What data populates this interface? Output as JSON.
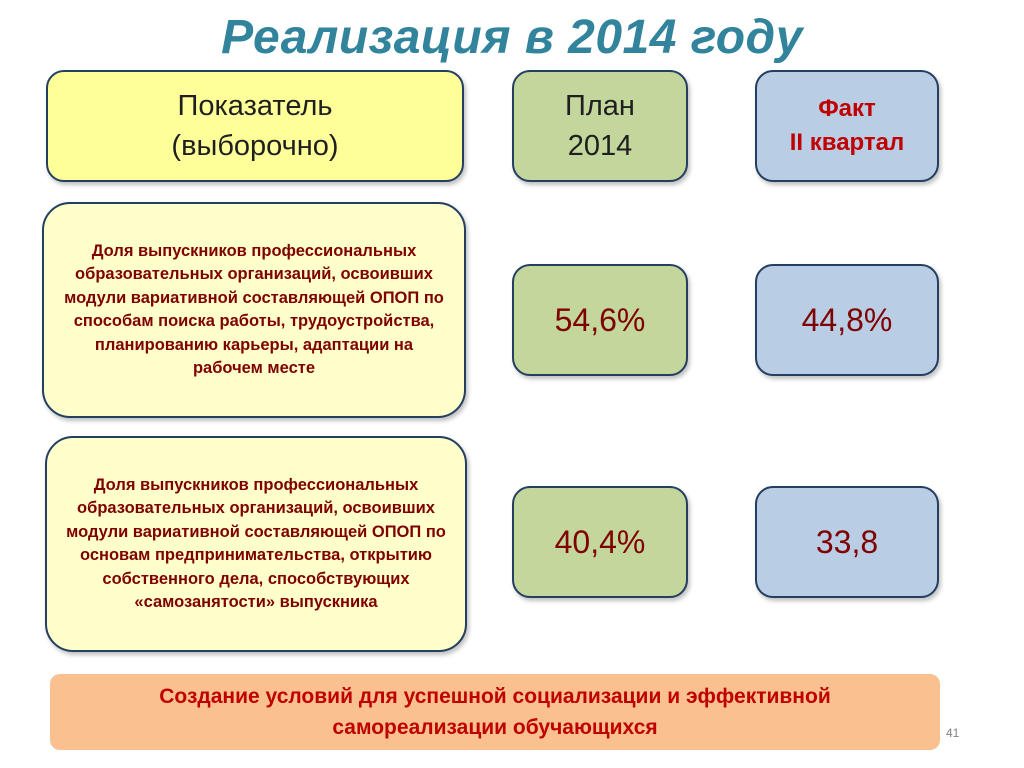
{
  "title": "Реализация в 2014 году",
  "headers": {
    "indicator": [
      "Показатель",
      "(выборочно)"
    ],
    "plan": [
      "План",
      "2014"
    ],
    "fact": [
      "Факт",
      "II квартал"
    ]
  },
  "rows": [
    {
      "description": "Доля  выпускников профессиональных образовательных организаций, освоивших модули вариативной составляющей ОПОП по способам поиска работы, трудоустройства, планированию карьеры, адаптации на рабочем месте",
      "plan": "54,6%",
      "fact": "44,8%"
    },
    {
      "description": "Доля  выпускников профессиональных образовательных организаций, освоивших модули вариативной составляющей ОПОП по основам предпринимательства, открытию собственного дела, способствующих  «самозанятости» выпускника",
      "plan": "40,4%",
      "fact": "33,8"
    }
  ],
  "footer": {
    "lines": [
      "Создание условий для успешной социализации и эффективной",
      "самореализации обучающихся"
    ]
  },
  "page_number": "41",
  "colors": {
    "title": "#31849b",
    "indicator_header_bg": "#ffff99",
    "description_bg": "#ffffcc",
    "plan_bg": "#c3d69b",
    "fact_bg": "#b9cde5",
    "footer_bg": "#fac090",
    "accent_text": "#c00000",
    "value_text": "#7f0000"
  }
}
